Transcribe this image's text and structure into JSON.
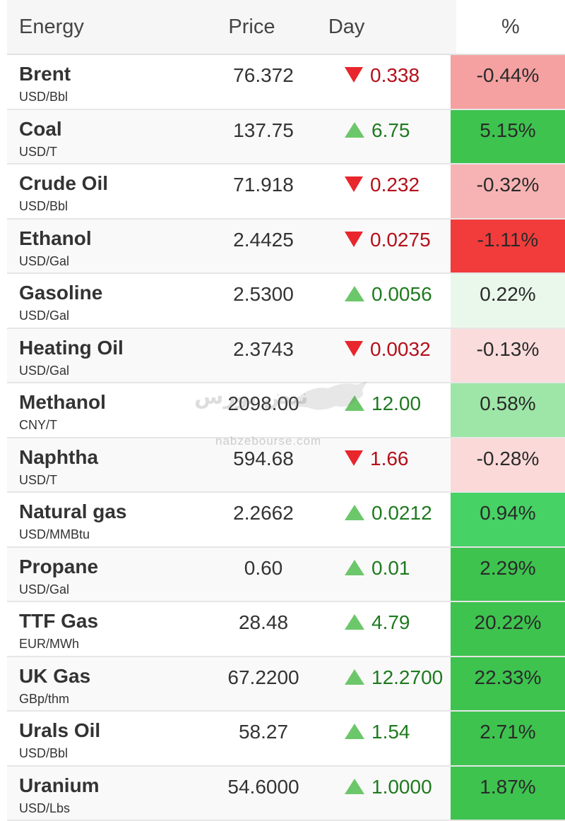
{
  "header": {
    "name": "Energy",
    "price": "Price",
    "day": "Day",
    "pct": "%"
  },
  "rows": [
    {
      "name": "Brent",
      "unit": "USD/Bbl",
      "price": "76.372",
      "dir": "down",
      "day": "0.338",
      "pct": "-0.44%",
      "pct_color": "#f5a1a1"
    },
    {
      "name": "Coal",
      "unit": "USD/T",
      "price": "137.75",
      "dir": "up",
      "day": "6.75",
      "pct": "5.15%",
      "pct_color": "#3ec34f"
    },
    {
      "name": "Crude Oil",
      "unit": "USD/Bbl",
      "price": "71.918",
      "dir": "down",
      "day": "0.232",
      "pct": "-0.32%",
      "pct_color": "#f7b3b3"
    },
    {
      "name": "Ethanol",
      "unit": "USD/Gal",
      "price": "2.4425",
      "dir": "down",
      "day": "0.0275",
      "pct": "-1.11%",
      "pct_color": "#f23c3c"
    },
    {
      "name": "Gasoline",
      "unit": "USD/Gal",
      "price": "2.5300",
      "dir": "up",
      "day": "0.0056",
      "pct": "0.22%",
      "pct_color": "#eaf8eb"
    },
    {
      "name": "Heating Oil",
      "unit": "USD/Gal",
      "price": "2.3743",
      "dir": "down",
      "day": "0.0032",
      "pct": "-0.13%",
      "pct_color": "#fbdcdc"
    },
    {
      "name": "Methanol",
      "unit": "CNY/T",
      "price": "2098.00",
      "dir": "up",
      "day": "12.00",
      "pct": "0.58%",
      "pct_color": "#9ee6a7"
    },
    {
      "name": "Naphtha",
      "unit": "USD/T",
      "price": "594.68",
      "dir": "down",
      "day": "1.66",
      "pct": "-0.28%",
      "pct_color": "#fbd9d9"
    },
    {
      "name": "Natural gas",
      "unit": "USD/MMBtu",
      "price": "2.2662",
      "dir": "up",
      "day": "0.0212",
      "pct": "0.94%",
      "pct_color": "#46d265"
    },
    {
      "name": "Propane",
      "unit": "USD/Gal",
      "price": "0.60",
      "dir": "up",
      "day": "0.01",
      "pct": "2.29%",
      "pct_color": "#3ec34f"
    },
    {
      "name": "TTF Gas",
      "unit": "EUR/MWh",
      "price": "28.48",
      "dir": "up",
      "day": "4.79",
      "pct": "20.22%",
      "pct_color": "#3ec34f"
    },
    {
      "name": "UK Gas",
      "unit": "GBp/thm",
      "price": "67.2200",
      "dir": "up",
      "day": "12.2700",
      "pct": "22.33%",
      "pct_color": "#3ec34f"
    },
    {
      "name": "Urals Oil",
      "unit": "USD/Bbl",
      "price": "58.27",
      "dir": "up",
      "day": "1.54",
      "pct": "2.71%",
      "pct_color": "#3ec34f"
    },
    {
      "name": "Uranium",
      "unit": "USD/Lbs",
      "price": "54.6000",
      "dir": "up",
      "day": "1.0000",
      "pct": "1.87%",
      "pct_color": "#3ec34f"
    }
  ],
  "watermark": {
    "logo": "نبض بورس",
    "url": "nabzebourse.com"
  }
}
